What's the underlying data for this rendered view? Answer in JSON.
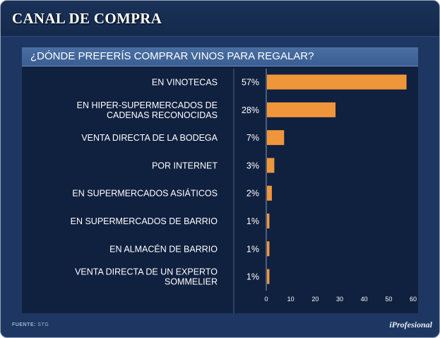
{
  "header": {
    "title": "CANAL DE COMPRA"
  },
  "footer": {
    "source_label": "FUENTE:",
    "source_value": "STG",
    "brand": "iProfesional"
  },
  "colors": {
    "bar": "#f0963a",
    "background": "#1e3762",
    "panel": "#10203f"
  },
  "chart_data": {
    "type": "bar",
    "orientation": "horizontal",
    "title": "¿DÓNDE PREFERÍS COMPRAR VINOS PARA REGALAR?",
    "categories": [
      [
        "EN VINOTECAS"
      ],
      [
        "EN HIPER-SUPERMERCADOS DE",
        "CADENAS RECONOCIDAS"
      ],
      [
        "VENTA DIRECTA DE LA BODEGA"
      ],
      [
        "POR INTERNET"
      ],
      [
        "EN SUPERMERCADOS ASIÁTICOS"
      ],
      [
        "EN SUPERMERCADOS DE BARRIO"
      ],
      [
        "EN ALMACÉN DE BARRIO"
      ],
      [
        "VENTA DIRECTA DE UN EXPERTO",
        "SOMMELIER"
      ]
    ],
    "values": [
      57,
      28,
      7,
      3,
      2,
      1,
      1,
      1
    ],
    "value_labels": [
      "57%",
      "28%",
      "7%",
      "3%",
      "2%",
      "1%",
      "1%",
      "1%"
    ],
    "xlim": [
      0,
      60
    ],
    "xticks": [
      "0",
      "10",
      "20",
      "30",
      "40",
      "50",
      "60"
    ],
    "xlabel": "",
    "ylabel": ""
  }
}
